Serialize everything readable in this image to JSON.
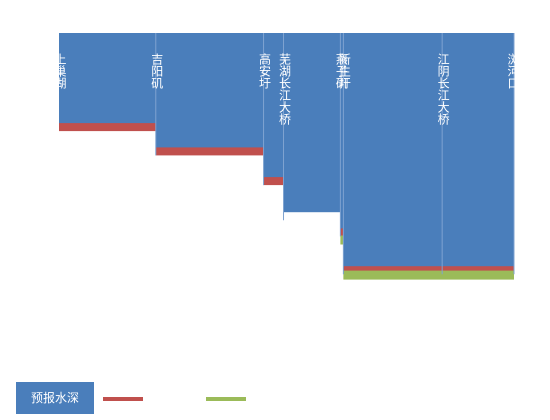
{
  "chart_data": {
    "type": "area",
    "stations": [
      {
        "name": "上巢湖",
        "km": 0
      },
      {
        "name": "吉阳矶",
        "km": 97
      },
      {
        "name": "高安圩",
        "km": 205
      },
      {
        "name": "芜湖长江大桥",
        "km": 225
      },
      {
        "name": "燕子矶",
        "km": 282
      },
      {
        "name": "新生圩",
        "km": 285
      },
      {
        "name": "江阴长江大桥",
        "km": 384
      },
      {
        "name": "浏河口",
        "km": 456
      }
    ],
    "x_range": [
      0,
      456
    ],
    "y_range": [
      0,
      100
    ],
    "series": [
      {
        "name": "预报水深",
        "color": "#4a7ebb",
        "style": "area",
        "segments": [
          {
            "x0": 0,
            "x1": 97,
            "value": 33
          },
          {
            "x0": 97,
            "x1": 205,
            "value": 42
          },
          {
            "x0": 205,
            "x1": 225,
            "value": 53
          },
          {
            "x0": 225,
            "x1": 282,
            "value": 66
          },
          {
            "x0": 282,
            "x1": 285,
            "value": 72
          },
          {
            "x0": 285,
            "x1": 456,
            "value": 86
          }
        ]
      },
      {
        "name": "",
        "color": "#c0504d",
        "style": "band",
        "segments": [
          {
            "x0": 0,
            "x1": 97,
            "value": 33
          },
          {
            "x0": 97,
            "x1": 205,
            "value": 42
          },
          {
            "x0": 205,
            "x1": 225,
            "value": 53
          },
          {
            "x0": 225,
            "x1": 282,
            "value": 62
          },
          {
            "x0": 282,
            "x1": 285,
            "value": 72
          },
          {
            "x0": 285,
            "x1": 456,
            "value": 86
          }
        ]
      },
      {
        "name": "",
        "color": "#9bbb59",
        "style": "band",
        "segments": [
          {
            "x0": 282,
            "x1": 285,
            "value": 75
          },
          {
            "x0": 285,
            "x1": 456,
            "value": 88
          }
        ]
      }
    ],
    "legend": {
      "placement": "bottom-left"
    }
  }
}
